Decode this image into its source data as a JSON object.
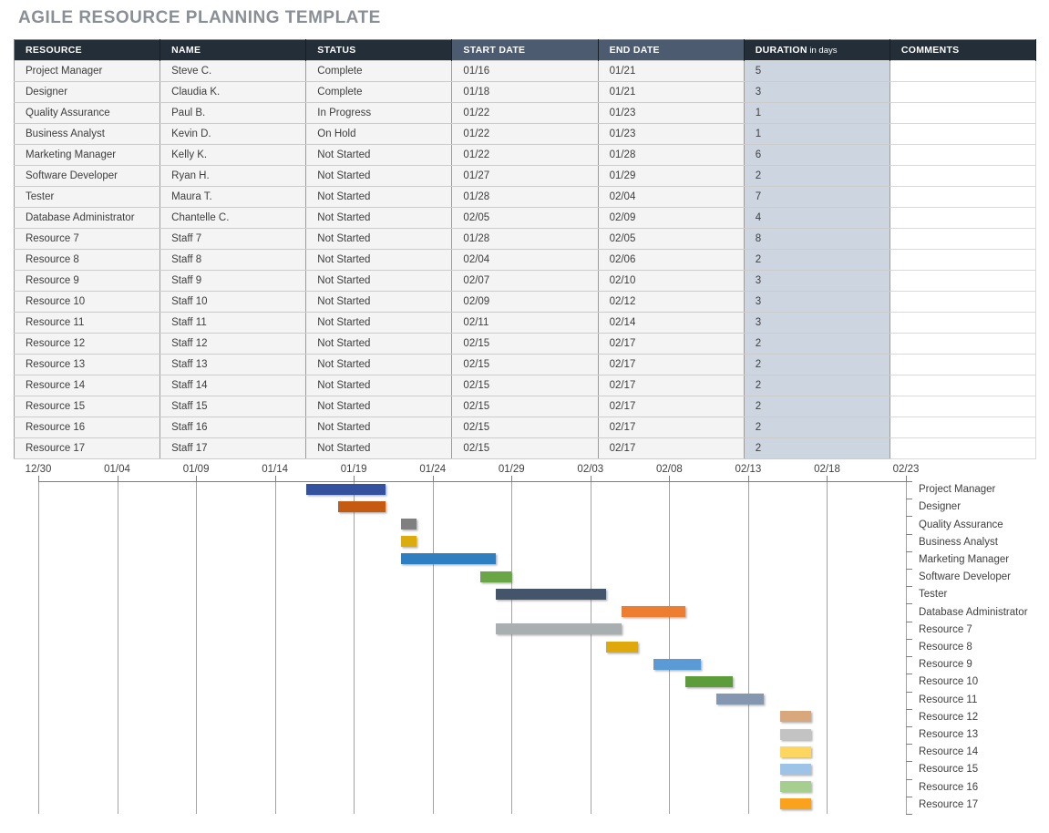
{
  "title": "AGILE RESOURCE PLANNING TEMPLATE",
  "colors": {
    "header_dark": "#242e39",
    "header_slate": "#4c5b6f",
    "duration_cell_bg": "#cdd5e1",
    "title_text": "#8a8f97"
  },
  "table": {
    "columns": [
      {
        "label": "RESOURCE",
        "theme": "dark",
        "key": "resource"
      },
      {
        "label": "NAME",
        "theme": "dark",
        "key": "name"
      },
      {
        "label": "STATUS",
        "theme": "dark",
        "key": "status"
      },
      {
        "label": "START DATE",
        "theme": "slate",
        "key": "start"
      },
      {
        "label": "END DATE",
        "theme": "slate",
        "key": "end"
      },
      {
        "label": "DURATION",
        "suffix": "in days",
        "theme": "dark",
        "key": "duration"
      },
      {
        "label": "COMMENTS",
        "theme": "dark",
        "key": "comments"
      }
    ],
    "rows": [
      {
        "resource": "Project Manager",
        "name": "Steve C.",
        "status": "Complete",
        "start": "01/16",
        "end": "01/21",
        "duration": "5",
        "comments": ""
      },
      {
        "resource": "Designer",
        "name": "Claudia K.",
        "status": "Complete",
        "start": "01/18",
        "end": "01/21",
        "duration": "3",
        "comments": ""
      },
      {
        "resource": "Quality Assurance",
        "name": "Paul B.",
        "status": "In Progress",
        "start": "01/22",
        "end": "01/23",
        "duration": "1",
        "comments": ""
      },
      {
        "resource": "Business Analyst",
        "name": "Kevin D.",
        "status": "On Hold",
        "start": "01/22",
        "end": "01/23",
        "duration": "1",
        "comments": ""
      },
      {
        "resource": "Marketing Manager",
        "name": "Kelly K.",
        "status": "Not Started",
        "start": "01/22",
        "end": "01/28",
        "duration": "6",
        "comments": ""
      },
      {
        "resource": "Software Developer",
        "name": "Ryan H.",
        "status": "Not Started",
        "start": "01/27",
        "end": "01/29",
        "duration": "2",
        "comments": ""
      },
      {
        "resource": "Tester",
        "name": "Maura T.",
        "status": "Not Started",
        "start": "01/28",
        "end": "02/04",
        "duration": "7",
        "comments": ""
      },
      {
        "resource": "Database Administrator",
        "name": "Chantelle C.",
        "status": "Not Started",
        "start": "02/05",
        "end": "02/09",
        "duration": "4",
        "comments": ""
      },
      {
        "resource": "Resource 7",
        "name": "Staff 7",
        "status": "Not Started",
        "start": "01/28",
        "end": "02/05",
        "duration": "8",
        "comments": ""
      },
      {
        "resource": "Resource 8",
        "name": "Staff 8",
        "status": "Not Started",
        "start": "02/04",
        "end": "02/06",
        "duration": "2",
        "comments": ""
      },
      {
        "resource": "Resource 9",
        "name": "Staff 9",
        "status": "Not Started",
        "start": "02/07",
        "end": "02/10",
        "duration": "3",
        "comments": ""
      },
      {
        "resource": "Resource 10",
        "name": "Staff 10",
        "status": "Not Started",
        "start": "02/09",
        "end": "02/12",
        "duration": "3",
        "comments": ""
      },
      {
        "resource": "Resource 11",
        "name": "Staff 11",
        "status": "Not Started",
        "start": "02/11",
        "end": "02/14",
        "duration": "3",
        "comments": ""
      },
      {
        "resource": "Resource 12",
        "name": "Staff 12",
        "status": "Not Started",
        "start": "02/15",
        "end": "02/17",
        "duration": "2",
        "comments": ""
      },
      {
        "resource": "Resource 13",
        "name": "Staff 13",
        "status": "Not Started",
        "start": "02/15",
        "end": "02/17",
        "duration": "2",
        "comments": ""
      },
      {
        "resource": "Resource 14",
        "name": "Staff 14",
        "status": "Not Started",
        "start": "02/15",
        "end": "02/17",
        "duration": "2",
        "comments": ""
      },
      {
        "resource": "Resource 15",
        "name": "Staff 15",
        "status": "Not Started",
        "start": "02/15",
        "end": "02/17",
        "duration": "2",
        "comments": ""
      },
      {
        "resource": "Resource 16",
        "name": "Staff 16",
        "status": "Not Started",
        "start": "02/15",
        "end": "02/17",
        "duration": "2",
        "comments": ""
      },
      {
        "resource": "Resource 17",
        "name": "Staff 17",
        "status": "Not Started",
        "start": "02/15",
        "end": "02/17",
        "duration": "2",
        "comments": ""
      }
    ]
  },
  "chart_data": {
    "type": "bar",
    "subtype": "gantt",
    "title": "",
    "x_ticks": [
      "12/30",
      "01/04",
      "01/09",
      "01/14",
      "01/19",
      "01/24",
      "01/29",
      "02/03",
      "02/08",
      "02/13",
      "02/18",
      "02/23"
    ],
    "axis_start": "12/30",
    "axis_end": "02/23",
    "day_span": 55,
    "grid": true,
    "legend_position": "none",
    "category_label_position": "right",
    "tasks": [
      {
        "label": "Project Manager",
        "start": "01/16",
        "end": "01/21",
        "start_day": 17,
        "end_day": 22,
        "color": "#34519e"
      },
      {
        "label": "Designer",
        "start": "01/18",
        "end": "01/21",
        "start_day": 19,
        "end_day": 22,
        "color": "#c55a11"
      },
      {
        "label": "Quality Assurance",
        "start": "01/22",
        "end": "01/23",
        "start_day": 23,
        "end_day": 24,
        "color": "#808080"
      },
      {
        "label": "Business Analyst",
        "start": "01/22",
        "end": "01/23",
        "start_day": 23,
        "end_day": 24,
        "color": "#dcab0c"
      },
      {
        "label": "Marketing Manager",
        "start": "01/22",
        "end": "01/28",
        "start_day": 23,
        "end_day": 29,
        "color": "#2e7fc1"
      },
      {
        "label": "Software Developer",
        "start": "01/27",
        "end": "01/29",
        "start_day": 28,
        "end_day": 30,
        "color": "#6aa546"
      },
      {
        "label": "Tester",
        "start": "01/28",
        "end": "02/04",
        "start_day": 29,
        "end_day": 36,
        "color": "#44546a"
      },
      {
        "label": "Database Administrator",
        "start": "02/05",
        "end": "02/09",
        "start_day": 37,
        "end_day": 41,
        "color": "#ed7d31"
      },
      {
        "label": "Resource 7",
        "start": "01/28",
        "end": "02/05",
        "start_day": 29,
        "end_day": 37,
        "color": "#a9aeb0"
      },
      {
        "label": "Resource 8",
        "start": "02/04",
        "end": "02/06",
        "start_day": 36,
        "end_day": 38,
        "color": "#dfa90b"
      },
      {
        "label": "Resource 9",
        "start": "02/07",
        "end": "02/10",
        "start_day": 39,
        "end_day": 42,
        "color": "#5b9bd5"
      },
      {
        "label": "Resource 10",
        "start": "02/09",
        "end": "02/12",
        "start_day": 41,
        "end_day": 44,
        "color": "#5d9c3a"
      },
      {
        "label": "Resource 11",
        "start": "02/11",
        "end": "02/14",
        "start_day": 43,
        "end_day": 46,
        "color": "#8496b0"
      },
      {
        "label": "Resource 12",
        "start": "02/15",
        "end": "02/17",
        "start_day": 47,
        "end_day": 49,
        "color": "#d9a77c"
      },
      {
        "label": "Resource 13",
        "start": "02/15",
        "end": "02/17",
        "start_day": 47,
        "end_day": 49,
        "color": "#c3c3c3"
      },
      {
        "label": "Resource 14",
        "start": "02/15",
        "end": "02/17",
        "start_day": 47,
        "end_day": 49,
        "color": "#fcd65f"
      },
      {
        "label": "Resource 15",
        "start": "02/15",
        "end": "02/17",
        "start_day": 47,
        "end_day": 49,
        "color": "#9dc3e6"
      },
      {
        "label": "Resource 16",
        "start": "02/15",
        "end": "02/17",
        "start_day": 47,
        "end_day": 49,
        "color": "#a6ce8e"
      },
      {
        "label": "Resource 17",
        "start": "02/15",
        "end": "02/17",
        "start_day": 47,
        "end_day": 49,
        "color": "#faa21b"
      }
    ]
  }
}
